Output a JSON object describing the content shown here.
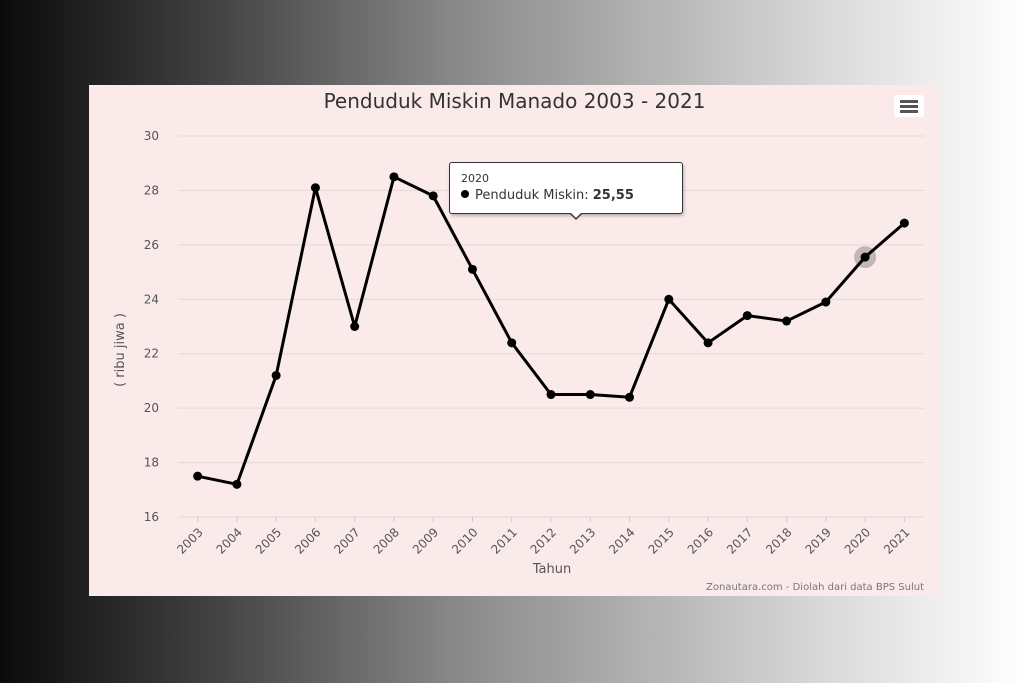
{
  "chart_data": {
    "type": "line",
    "title": "Penduduk Miskin Manado 2003 - 2021",
    "xlabel": "Tahun",
    "ylabel": "( ribu jiwa )",
    "credit": "Zonautara.com - Diolah dari data BPS Sulut",
    "ylim": [
      16,
      30
    ],
    "yticks": [
      16,
      18,
      20,
      22,
      24,
      26,
      28,
      30
    ],
    "categories": [
      "2003",
      "2004",
      "2005",
      "2006",
      "2007",
      "2008",
      "2009",
      "2010",
      "2011",
      "2012",
      "2013",
      "2014",
      "2015",
      "2016",
      "2017",
      "2018",
      "2019",
      "2020",
      "2021"
    ],
    "series": [
      {
        "name": "Penduduk Miskin",
        "color": "#000000",
        "values": [
          17.5,
          17.2,
          21.2,
          28.1,
          23.0,
          28.5,
          27.8,
          25.1,
          22.4,
          20.5,
          20.5,
          20.4,
          24.0,
          22.4,
          23.4,
          23.2,
          23.9,
          25.55,
          26.8
        ]
      }
    ],
    "grid": true,
    "legend": "none"
  },
  "tooltip": {
    "x": "2020",
    "series_label": "Penduduk Miskin:",
    "value": "25,55",
    "highlight_index": 17
  },
  "menu": {
    "icon": "hamburger-menu-icon"
  }
}
